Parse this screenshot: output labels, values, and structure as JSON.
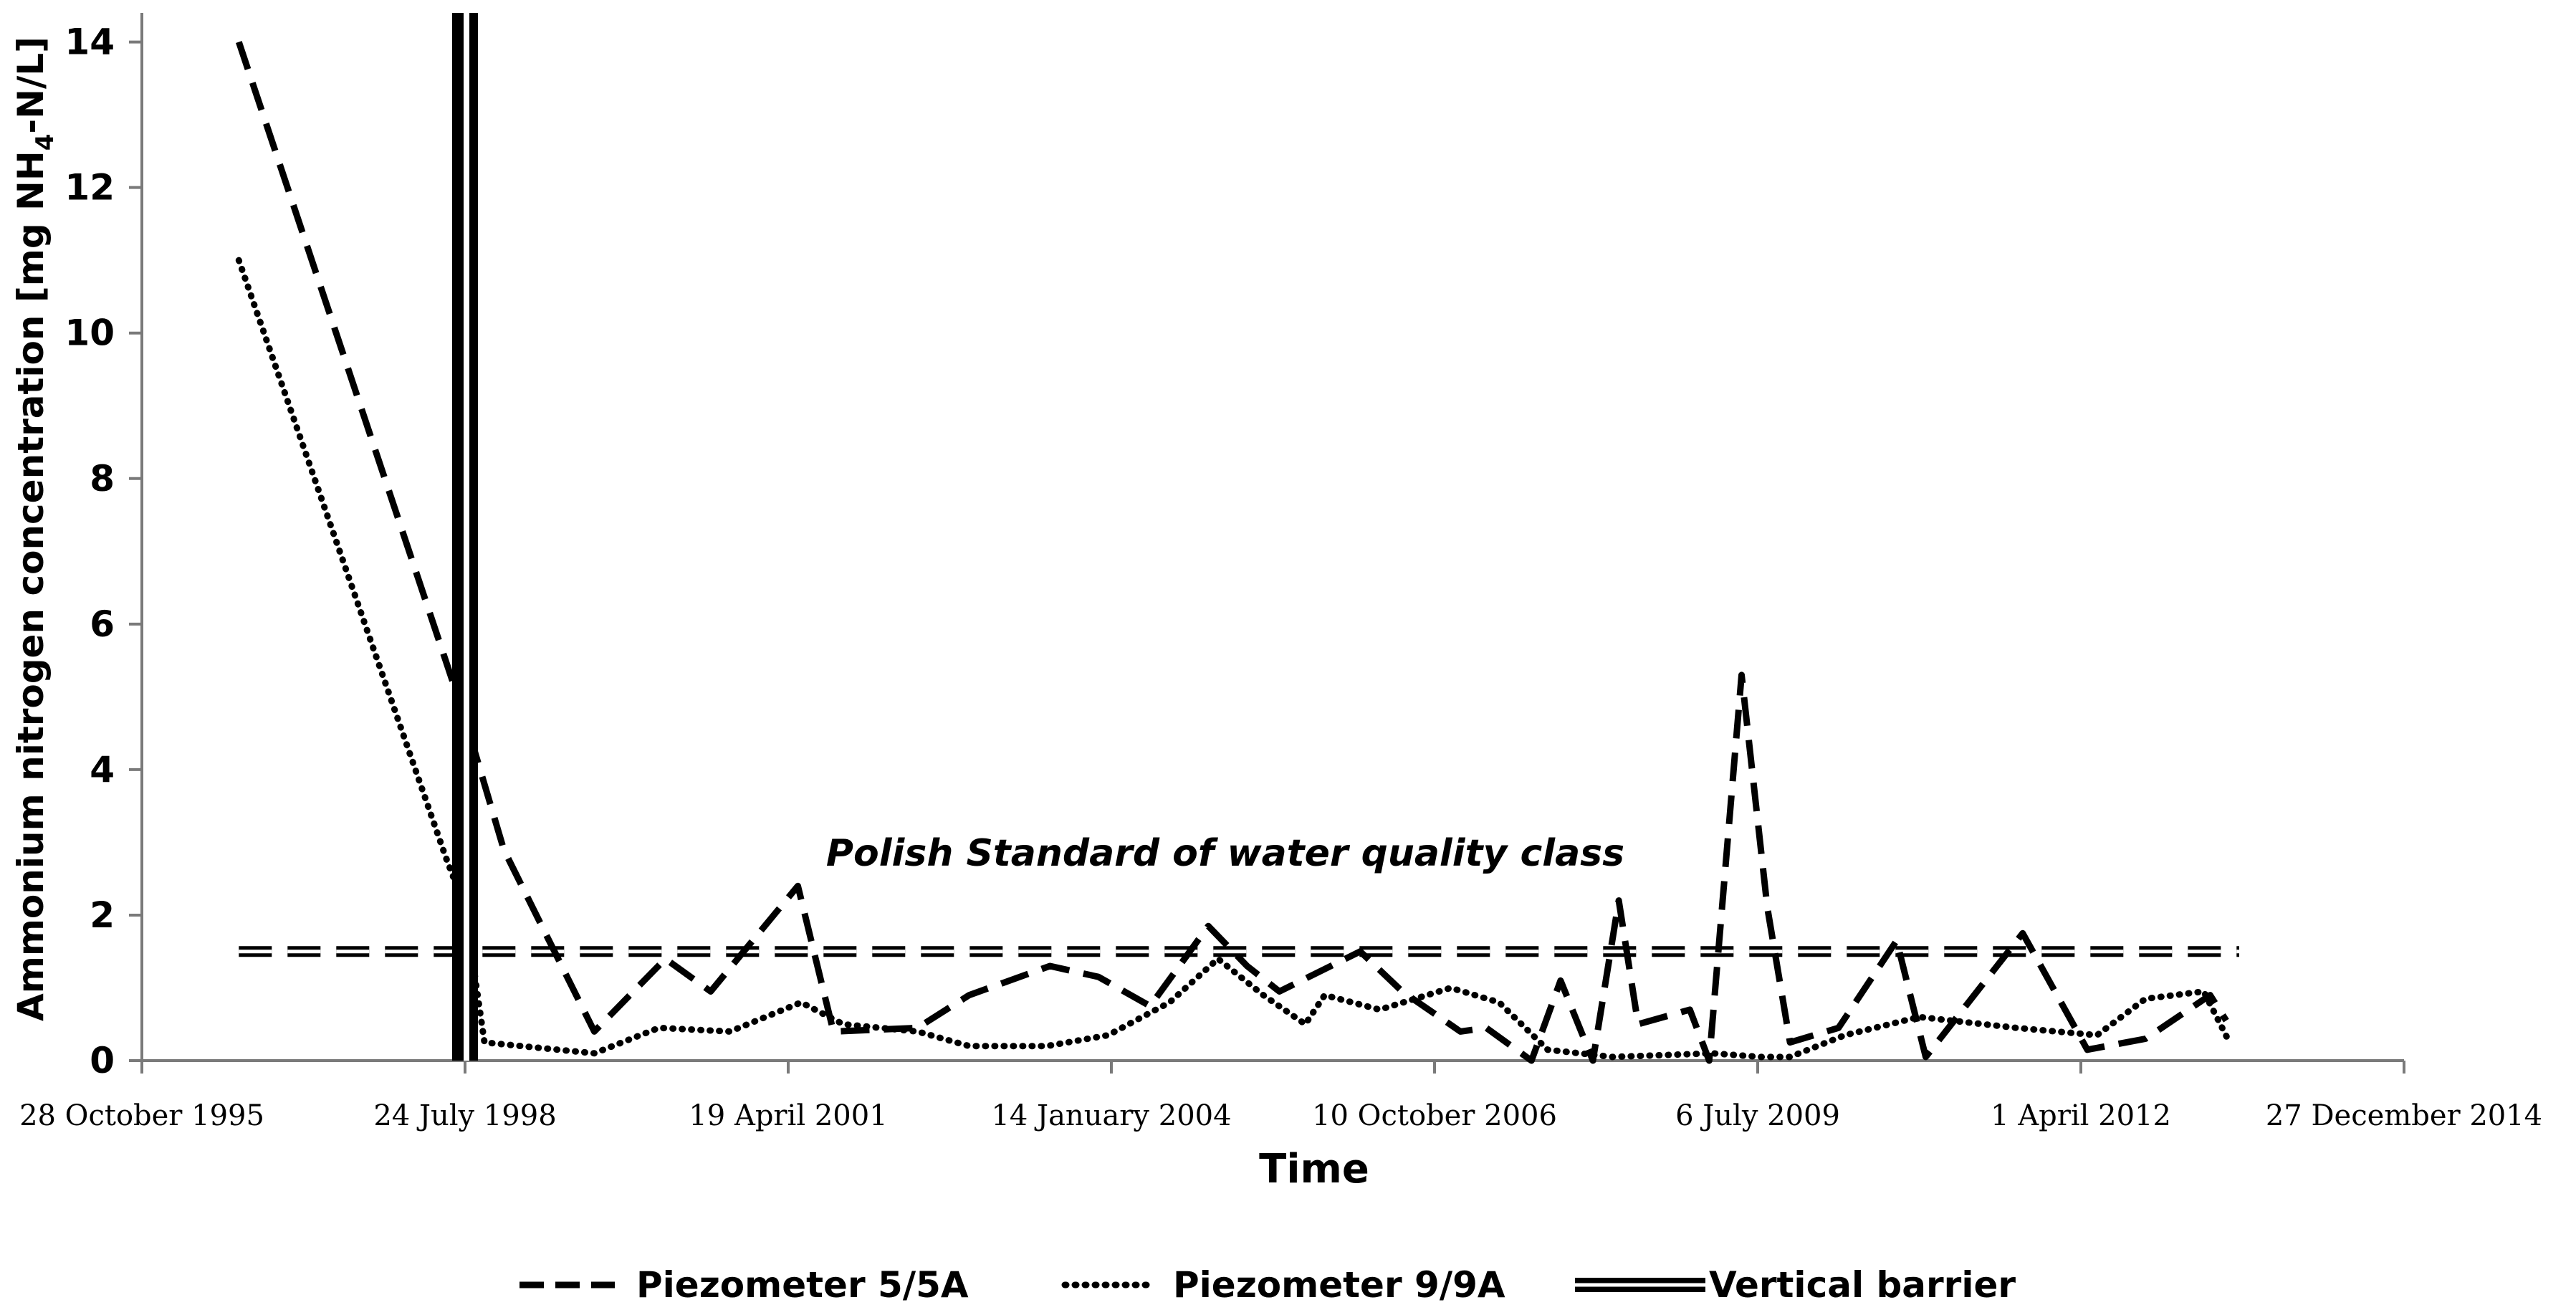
{
  "chart_data": {
    "type": "line",
    "ylabel": "Ammonium nitrogen concentration [mg NH4-N/L]",
    "ylabel_parts": {
      "prefix": "Ammonium nitrogen concentration [mg NH",
      "sub": "4",
      "suffix": "-N/L]"
    },
    "xlabel": "Time",
    "ylim": [
      0,
      14.4
    ],
    "yticks": [
      0,
      2,
      4,
      6,
      8,
      10,
      12,
      14
    ],
    "xlim_days": [
      0,
      7000
    ],
    "xticks": [
      {
        "day": 0,
        "label": "28 October 1995"
      },
      {
        "day": 1000,
        "label": "24 July 1998"
      },
      {
        "day": 2000,
        "label": "19 April 2001"
      },
      {
        "day": 3000,
        "label": "14 January 2004"
      },
      {
        "day": 4000,
        "label": "10 October 2006"
      },
      {
        "day": 5000,
        "label": "6 July 2009"
      },
      {
        "day": 6000,
        "label": "1 April 2012"
      },
      {
        "day": 7000,
        "label": "27 December 2014"
      }
    ],
    "annotation": "Polish Standard of water quality class",
    "standard": {
      "name": "Polish Standard",
      "value": 1.5,
      "x_start_day": 300,
      "x_end_day": 6490
    },
    "barrier": {
      "name": "Vertical barrier",
      "day": 1000
    },
    "series": [
      {
        "name": "Piezometer 5/5A",
        "style": "dashed",
        "x": [
          300,
          940,
          1000,
          1120,
          1400,
          1620,
          1760,
          2030,
          2140,
          2400,
          2560,
          2810,
          2960,
          3120,
          3300,
          3420,
          3520,
          3770,
          3900,
          4080,
          4160,
          4300,
          4390,
          4490,
          4570,
          4630,
          4790,
          4850,
          4950,
          5030,
          5100,
          5250,
          5430,
          5520,
          5820,
          6020,
          6200,
          6400,
          6450
        ],
        "y": [
          14.0,
          5.5,
          4.7,
          2.9,
          0.4,
          1.4,
          0.95,
          2.4,
          0.4,
          0.45,
          0.9,
          1.3,
          1.15,
          0.75,
          1.85,
          1.3,
          0.95,
          1.5,
          0.95,
          0.4,
          0.45,
          0.0,
          1.1,
          0.0,
          2.2,
          0.5,
          0.7,
          0.0,
          5.3,
          2.1,
          0.25,
          0.45,
          1.65,
          0.05,
          1.75,
          0.15,
          0.3,
          0.9,
          0.55
        ]
      },
      {
        "name": "Piezometer 9/9A",
        "style": "dotted",
        "x": [
          300,
          940,
          1000,
          1060,
          1400,
          1600,
          1820,
          2040,
          2170,
          2400,
          2560,
          2800,
          2990,
          3180,
          3330,
          3470,
          3600,
          3660,
          3830,
          4050,
          4200,
          4350,
          4550,
          4860,
          5010,
          5100,
          5270,
          5500,
          5800,
          6050,
          6200,
          6380,
          6460
        ],
        "y": [
          11.0,
          2.8,
          2.1,
          0.25,
          0.1,
          0.45,
          0.4,
          0.8,
          0.5,
          0.4,
          0.2,
          0.2,
          0.35,
          0.8,
          1.4,
          0.9,
          0.5,
          0.9,
          0.7,
          1.0,
          0.8,
          0.15,
          0.05,
          0.1,
          0.05,
          0.05,
          0.35,
          0.6,
          0.45,
          0.35,
          0.85,
          0.95,
          0.25
        ]
      }
    ],
    "legend": [
      {
        "label": "Piezometer 5/5A",
        "style": "dashed"
      },
      {
        "label": "Piezometer 9/9A",
        "style": "dotted"
      },
      {
        "label": "Vertical barrier",
        "style": "double"
      }
    ]
  }
}
